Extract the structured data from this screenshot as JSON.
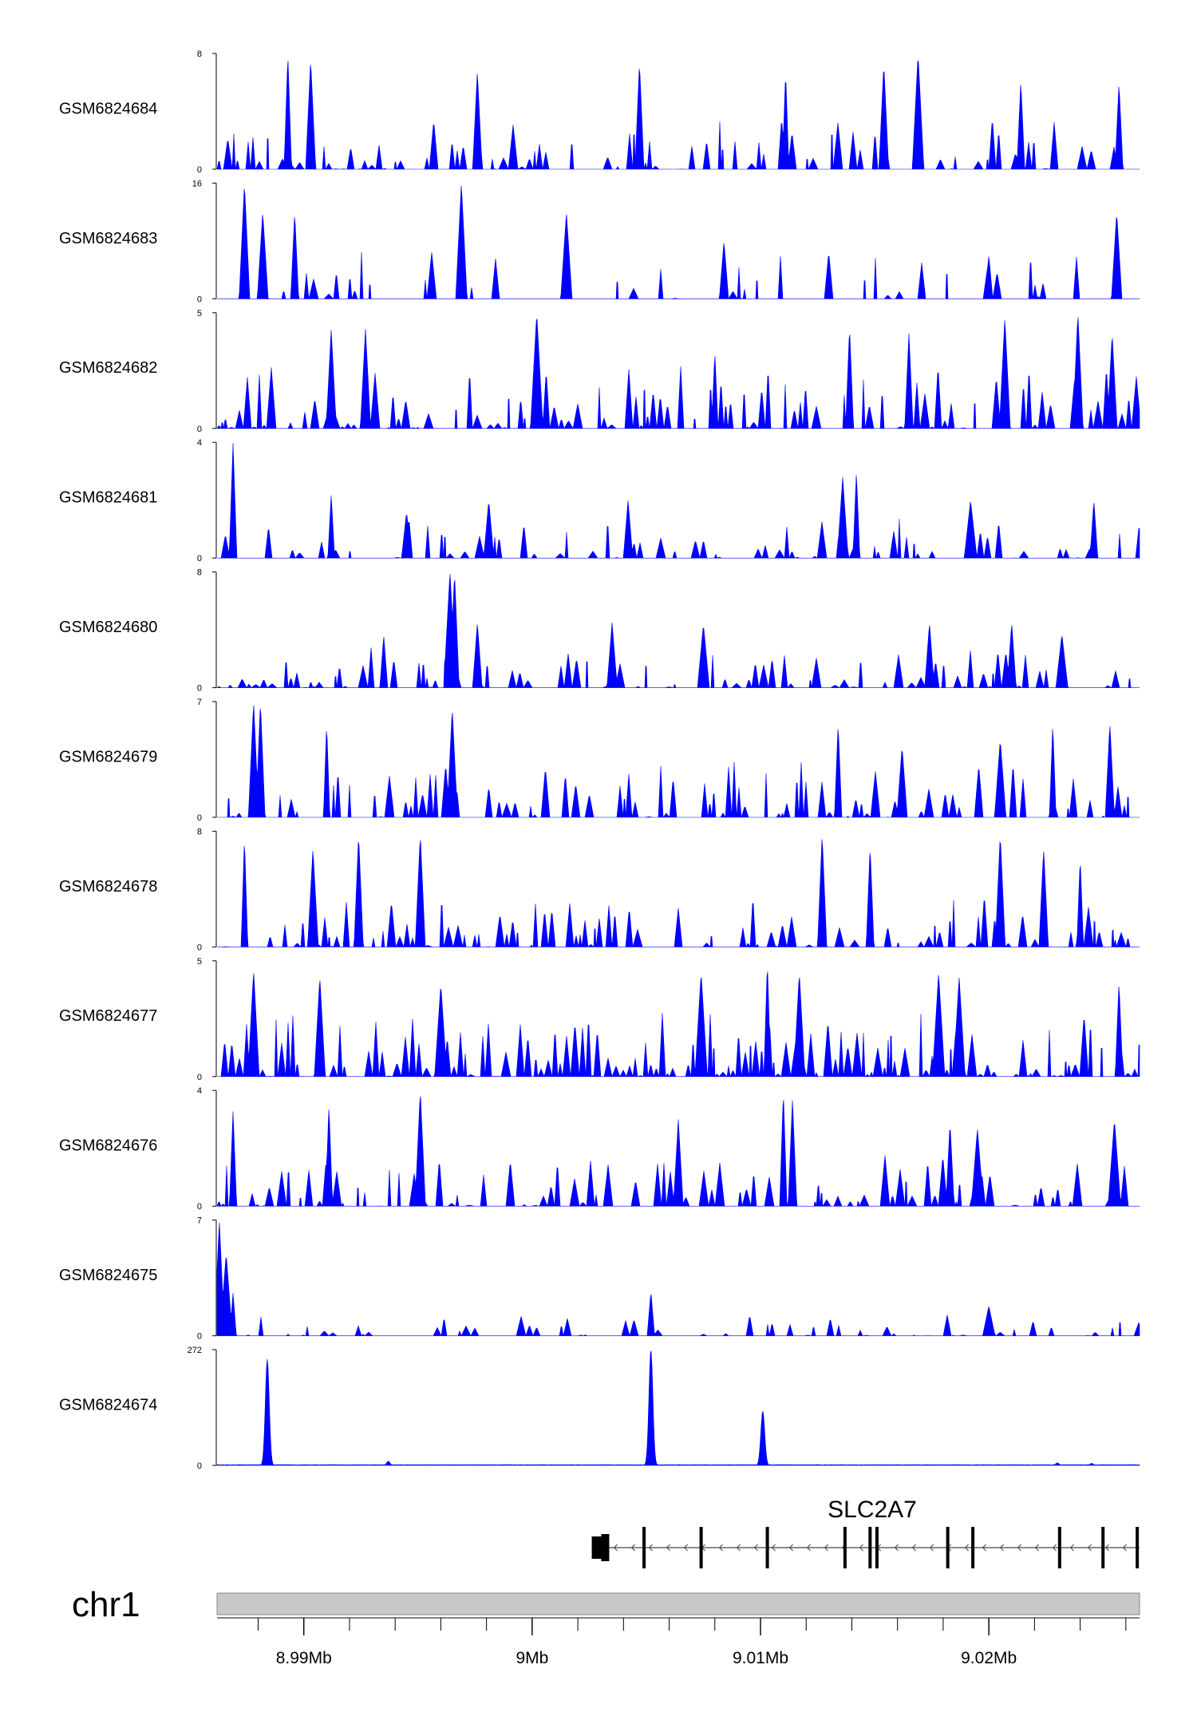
{
  "chart_data": {
    "type": "area",
    "title": "",
    "chromosome": "chr1",
    "xlim": [
      8.9862,
      9.0266
    ],
    "xunit": "Mb",
    "x_tick_labels": [
      {
        "value": 8.99,
        "label": "8.99Mb"
      },
      {
        "value": 9.0,
        "label": "9Mb"
      },
      {
        "value": 9.01,
        "label": "9.01Mb"
      },
      {
        "value": 9.02,
        "label": "9.02Mb"
      }
    ],
    "x_minor_ticks": [
      8.986,
      8.988,
      8.99,
      8.992,
      8.994,
      8.996,
      8.998,
      9.0,
      9.002,
      9.004,
      9.006,
      9.008,
      9.01,
      9.012,
      9.014,
      9.016,
      9.018,
      9.02,
      9.022,
      9.024,
      9.026
    ],
    "color": "#0000ff",
    "series": [
      {
        "name": "GSM6824684",
        "ymax": 8,
        "ymin": 0,
        "seed": 11,
        "density": 0.55,
        "scale": 0.45,
        "peaks": [
          [
            8.9893,
            8
          ],
          [
            8.9903,
            7.6
          ],
          [
            8.9976,
            6.8
          ],
          [
            9.0047,
            7.4
          ],
          [
            9.0111,
            6.8
          ],
          [
            9.0154,
            7.3
          ],
          [
            9.0169,
            8
          ],
          [
            9.0214,
            6.1
          ],
          [
            9.0257,
            6.0
          ]
        ]
      },
      {
        "name": "GSM6824683",
        "ymax": 16,
        "ymin": 0,
        "seed": 23,
        "density": 0.22,
        "scale": 0.45,
        "peaks": [
          [
            8.9874,
            16
          ],
          [
            8.9882,
            12
          ],
          [
            8.9896,
            12
          ],
          [
            8.9969,
            16
          ],
          [
            9.0015,
            12
          ],
          [
            9.0084,
            8
          ],
          [
            9.02,
            6
          ],
          [
            9.0256,
            12
          ]
        ]
      },
      {
        "name": "GSM6824682",
        "ymax": 5,
        "ymin": 0,
        "seed": 37,
        "density": 0.7,
        "scale": 0.55,
        "peaks": [
          [
            8.9912,
            4.3
          ],
          [
            8.9927,
            4.3
          ],
          [
            9.0002,
            5
          ],
          [
            9.008,
            3.3
          ],
          [
            9.0139,
            4.4
          ],
          [
            9.0165,
            4.1
          ],
          [
            9.0207,
            4.8
          ],
          [
            9.0239,
            5
          ],
          [
            9.0254,
            4.1
          ]
        ]
      },
      {
        "name": "GSM6824681",
        "ymax": 4,
        "ymin": 0,
        "seed": 41,
        "density": 0.45,
        "scale": 0.35,
        "peaks": [
          [
            8.9869,
            4
          ],
          [
            8.9912,
            2.2
          ],
          [
            8.9945,
            1.6
          ],
          [
            8.9981,
            2.0
          ],
          [
            9.0042,
            2.0
          ],
          [
            9.0136,
            2.8
          ],
          [
            9.0142,
            3.0
          ],
          [
            9.0192,
            2.0
          ],
          [
            9.0246,
            2.0
          ]
        ]
      },
      {
        "name": "GSM6824680",
        "ymax": 8,
        "ymin": 0,
        "seed": 53,
        "density": 0.5,
        "scale": 0.35,
        "peaks": [
          [
            8.9964,
            8
          ],
          [
            8.9966,
            8
          ],
          [
            8.9976,
            4.5
          ],
          [
            8.9935,
            3.6
          ],
          [
            9.0035,
            4.5
          ],
          [
            9.0075,
            4.4
          ],
          [
            9.0174,
            4.5
          ],
          [
            9.021,
            4.5
          ],
          [
            9.0232,
            3.7
          ]
        ]
      },
      {
        "name": "GSM6824679",
        "ymax": 7,
        "ymin": 0,
        "seed": 61,
        "density": 0.6,
        "scale": 0.5,
        "peaks": [
          [
            8.9878,
            7
          ],
          [
            8.9881,
            7
          ],
          [
            8.991,
            5.7
          ],
          [
            8.9965,
            6.6
          ],
          [
            9.0134,
            5.7
          ],
          [
            9.0162,
            4.3
          ],
          [
            9.0228,
            5.7
          ],
          [
            9.0253,
            5.7
          ],
          [
            9.0205,
            4.7
          ]
        ]
      },
      {
        "name": "GSM6824678",
        "ymax": 8,
        "ymin": 0,
        "seed": 73,
        "density": 0.6,
        "scale": 0.45,
        "peaks": [
          [
            8.9874,
            7.6
          ],
          [
            8.9904,
            6.8
          ],
          [
            8.9924,
            7.8
          ],
          [
            8.9951,
            7.8
          ],
          [
            9.0127,
            7.8
          ],
          [
            9.0148,
            7.0
          ],
          [
            9.0205,
            7.8
          ],
          [
            9.0224,
            6.8
          ],
          [
            9.024,
            6.2
          ]
        ]
      },
      {
        "name": "GSM6824677",
        "ymax": 5,
        "ymin": 0,
        "seed": 83,
        "density": 0.8,
        "scale": 0.55,
        "peaks": [
          [
            8.9878,
            4.6
          ],
          [
            8.9907,
            4.3
          ],
          [
            8.996,
            4.0
          ],
          [
            9.0074,
            4.5
          ],
          [
            9.0103,
            5
          ],
          [
            9.0117,
            4.5
          ],
          [
            9.0178,
            4.5
          ],
          [
            9.0187,
            4.3
          ],
          [
            9.0257,
            4.1
          ]
        ]
      },
      {
        "name": "GSM6824676",
        "ymax": 4,
        "ymin": 0,
        "seed": 97,
        "density": 0.65,
        "scale": 0.45,
        "peaks": [
          [
            8.9869,
            3.3
          ],
          [
            8.9911,
            3.5
          ],
          [
            8.9951,
            4
          ],
          [
            9.0064,
            3.0
          ],
          [
            9.011,
            4
          ],
          [
            9.0114,
            3.7
          ],
          [
            9.0183,
            2.9
          ],
          [
            9.0195,
            2.7
          ],
          [
            9.0255,
            3.0
          ]
        ]
      },
      {
        "name": "GSM6824675",
        "ymax": 7,
        "ymin": 0,
        "seed": 107,
        "density": 0.4,
        "scale": 0.18,
        "peaks": [
          [
            8.9863,
            7
          ],
          [
            8.9866,
            5
          ],
          [
            8.9869,
            2.6
          ],
          [
            9.0052,
            2.7
          ],
          [
            9.02,
            1.8
          ]
        ]
      },
      {
        "name": "GSM6824674",
        "ymax": 272,
        "ymin": 0,
        "seed": 113,
        "density": 0.0,
        "scale": 0.0,
        "peaks": [
          [
            8.9884,
            250
          ],
          [
            9.0052,
            272
          ],
          [
            9.0101,
            128
          ],
          [
            8.9937,
            10
          ],
          [
            9.023,
            6
          ],
          [
            9.0245,
            5
          ]
        ]
      }
    ],
    "gene": {
      "name": "SLC2A7",
      "start": 9.0031,
      "end": 9.0266,
      "strand": "-",
      "exons": [
        9.0032,
        9.0049,
        9.0074,
        9.0103,
        9.0137,
        9.0148,
        9.0151,
        9.0182,
        9.0193,
        9.0231,
        9.025,
        9.0265
      ]
    }
  }
}
